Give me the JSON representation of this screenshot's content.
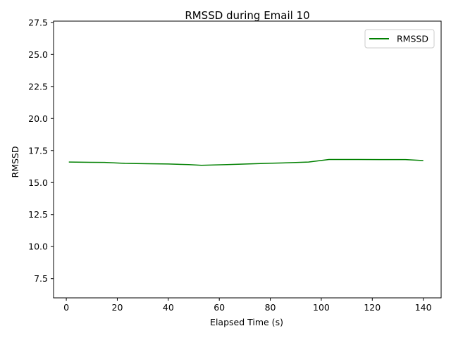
{
  "chart_data": {
    "type": "line",
    "title": "RMSSD during Email 10",
    "xlabel": "Elapsed Time (s)",
    "ylabel": "RMSSD",
    "xlim": [
      -5,
      147
    ],
    "ylim": [
      6.0,
      27.6
    ],
    "xticks": [
      0,
      20,
      40,
      60,
      80,
      100,
      120,
      140
    ],
    "yticks": [
      7.5,
      10.0,
      12.5,
      15.0,
      17.5,
      20.0,
      22.5,
      25.0,
      27.5
    ],
    "xtick_labels": [
      "0",
      "20",
      "40",
      "60",
      "80",
      "100",
      "120",
      "140"
    ],
    "ytick_labels": [
      "7.5",
      "10.0",
      "12.5",
      "15.0",
      "17.5",
      "20.0",
      "22.5",
      "25.0",
      "27.5"
    ],
    "legend_position": "top-right",
    "grid": false,
    "series": [
      {
        "name": "RMSSD",
        "color": "#008000",
        "x": [
          1,
          15,
          23,
          32,
          40,
          48,
          53,
          63,
          75,
          85,
          95,
          103,
          113,
          123,
          133,
          140
        ],
        "y": [
          16.6,
          16.57,
          16.5,
          16.47,
          16.45,
          16.4,
          16.35,
          16.4,
          16.48,
          16.53,
          16.6,
          16.8,
          16.8,
          16.79,
          16.79,
          16.72
        ]
      }
    ]
  }
}
